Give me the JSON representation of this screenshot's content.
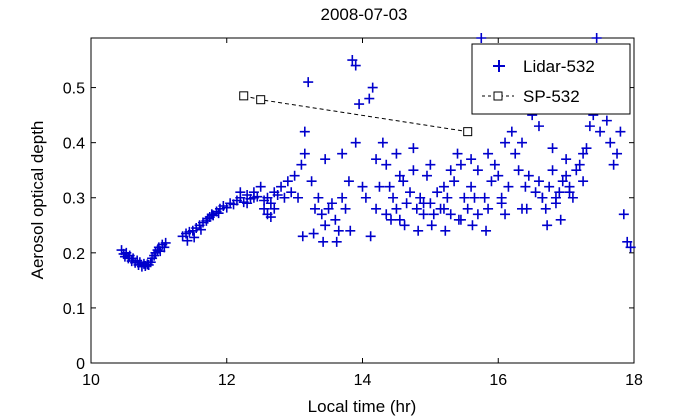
{
  "chart_data": {
    "type": "scatter",
    "title": "2008-07-03",
    "xlabel": "Local time (hr)",
    "ylabel": "Aerosol optical depth",
    "xlim": [
      10,
      18
    ],
    "ylim": [
      0,
      0.59
    ],
    "xticks": [
      "10",
      "12",
      "14",
      "16",
      "18"
    ],
    "xtick_values": [
      10,
      12,
      14,
      16,
      18
    ],
    "yticks": [
      "0",
      "0.1",
      "0.2",
      "0.3",
      "0.4",
      "0.5"
    ],
    "ytick_values": [
      0,
      0.1,
      0.2,
      0.3,
      0.4,
      0.5
    ],
    "legend_position": "top-right",
    "colors": {
      "lidar": "#0000cc",
      "sp": "#000000"
    },
    "series": [
      {
        "name": "Lidar-532",
        "marker": "plus",
        "points": [
          [
            10.45,
            0.205
          ],
          [
            10.48,
            0.198
          ],
          [
            10.5,
            0.193
          ],
          [
            10.52,
            0.2
          ],
          [
            10.55,
            0.19
          ],
          [
            10.57,
            0.195
          ],
          [
            10.6,
            0.185
          ],
          [
            10.62,
            0.19
          ],
          [
            10.65,
            0.182
          ],
          [
            10.68,
            0.186
          ],
          [
            10.7,
            0.178
          ],
          [
            10.72,
            0.183
          ],
          [
            10.75,
            0.175
          ],
          [
            10.78,
            0.18
          ],
          [
            10.8,
            0.176
          ],
          [
            10.83,
            0.179
          ],
          [
            10.85,
            0.178
          ],
          [
            10.88,
            0.183
          ],
          [
            10.9,
            0.19
          ],
          [
            10.93,
            0.195
          ],
          [
            10.95,
            0.2
          ],
          [
            10.98,
            0.205
          ],
          [
            11.0,
            0.21
          ],
          [
            11.02,
            0.203
          ],
          [
            11.05,
            0.215
          ],
          [
            11.08,
            0.21
          ],
          [
            11.1,
            0.218
          ],
          [
            11.35,
            0.23
          ],
          [
            11.4,
            0.235
          ],
          [
            11.42,
            0.222
          ],
          [
            11.45,
            0.238
          ],
          [
            11.5,
            0.24
          ],
          [
            11.52,
            0.228
          ],
          [
            11.55,
            0.245
          ],
          [
            11.6,
            0.25
          ],
          [
            11.62,
            0.242
          ],
          [
            11.65,
            0.255
          ],
          [
            11.7,
            0.258
          ],
          [
            11.72,
            0.262
          ],
          [
            11.75,
            0.265
          ],
          [
            11.78,
            0.27
          ],
          [
            11.8,
            0.268
          ],
          [
            11.85,
            0.275
          ],
          [
            11.88,
            0.272
          ],
          [
            11.9,
            0.28
          ],
          [
            11.95,
            0.285
          ],
          [
            12.0,
            0.282
          ],
          [
            12.05,
            0.29
          ],
          [
            12.1,
            0.288
          ],
          [
            12.15,
            0.295
          ],
          [
            12.2,
            0.3
          ],
          [
            12.25,
            0.292
          ],
          [
            12.3,
            0.305
          ],
          [
            12.35,
            0.298
          ],
          [
            12.4,
            0.31
          ],
          [
            12.45,
            0.302
          ],
          [
            12.5,
            0.32
          ],
          [
            12.55,
            0.295
          ],
          [
            12.6,
            0.3
          ],
          [
            12.65,
            0.29
          ],
          [
            12.7,
            0.31
          ],
          [
            12.75,
            0.305
          ],
          [
            12.8,
            0.32
          ],
          [
            12.85,
            0.3
          ],
          [
            12.9,
            0.33
          ],
          [
            12.95,
            0.31
          ],
          [
            12.55,
            0.28
          ],
          [
            12.6,
            0.27
          ],
          [
            12.65,
            0.265
          ],
          [
            12.7,
            0.28
          ],
          [
            12.4,
            0.3
          ],
          [
            12.2,
            0.31
          ],
          [
            12.3,
            0.29
          ],
          [
            13.0,
            0.34
          ],
          [
            13.05,
            0.3
          ],
          [
            13.1,
            0.36
          ],
          [
            13.15,
            0.38
          ],
          [
            13.2,
            0.51
          ],
          [
            13.25,
            0.33
          ],
          [
            13.3,
            0.28
          ],
          [
            13.35,
            0.3
          ],
          [
            13.4,
            0.27
          ],
          [
            13.45,
            0.25
          ],
          [
            13.5,
            0.28
          ],
          [
            13.55,
            0.29
          ],
          [
            13.6,
            0.26
          ],
          [
            13.65,
            0.24
          ],
          [
            13.7,
            0.3
          ],
          [
            13.75,
            0.28
          ],
          [
            13.8,
            0.33
          ],
          [
            13.85,
            0.55
          ],
          [
            13.9,
            0.54
          ],
          [
            13.95,
            0.47
          ],
          [
            14.0,
            0.32
          ],
          [
            14.05,
            0.3
          ],
          [
            14.1,
            0.48
          ],
          [
            14.15,
            0.5
          ],
          [
            14.2,
            0.28
          ],
          [
            14.25,
            0.32
          ],
          [
            14.3,
            0.4
          ],
          [
            14.35,
            0.36
          ],
          [
            14.4,
            0.32
          ],
          [
            14.45,
            0.3
          ],
          [
            14.5,
            0.28
          ],
          [
            14.55,
            0.34
          ],
          [
            14.6,
            0.33
          ],
          [
            14.65,
            0.29
          ],
          [
            14.7,
            0.31
          ],
          [
            14.75,
            0.35
          ],
          [
            14.8,
            0.28
          ],
          [
            14.85,
            0.3
          ],
          [
            14.9,
            0.27
          ],
          [
            14.95,
            0.34
          ],
          [
            15.0,
            0.29
          ],
          [
            15.05,
            0.27
          ],
          [
            15.1,
            0.31
          ],
          [
            15.15,
            0.28
          ],
          [
            15.2,
            0.32
          ],
          [
            15.25,
            0.3
          ],
          [
            15.3,
            0.27
          ],
          [
            15.35,
            0.33
          ],
          [
            15.4,
            0.38
          ],
          [
            15.45,
            0.36
          ],
          [
            15.5,
            0.3
          ],
          [
            15.55,
            0.28
          ],
          [
            15.6,
            0.32
          ],
          [
            15.65,
            0.3
          ],
          [
            15.7,
            0.35
          ],
          [
            15.75,
            0.59
          ],
          [
            15.8,
            0.3
          ],
          [
            15.85,
            0.28
          ],
          [
            15.9,
            0.33
          ],
          [
            15.95,
            0.36
          ],
          [
            16.0,
            0.34
          ],
          [
            16.05,
            0.3
          ],
          [
            16.1,
            0.27
          ],
          [
            16.15,
            0.32
          ],
          [
            16.2,
            0.42
          ],
          [
            16.25,
            0.38
          ],
          [
            16.3,
            0.35
          ],
          [
            16.35,
            0.4
          ],
          [
            16.4,
            0.32
          ],
          [
            16.45,
            0.34
          ],
          [
            16.5,
            0.45
          ],
          [
            16.55,
            0.31
          ],
          [
            16.6,
            0.33
          ],
          [
            16.65,
            0.3
          ],
          [
            16.7,
            0.28
          ],
          [
            16.75,
            0.32
          ],
          [
            16.8,
            0.35
          ],
          [
            16.85,
            0.3
          ],
          [
            16.9,
            0.31
          ],
          [
            16.95,
            0.33
          ],
          [
            17.0,
            0.34
          ],
          [
            17.05,
            0.32
          ],
          [
            17.1,
            0.3
          ],
          [
            17.15,
            0.35
          ],
          [
            17.2,
            0.36
          ],
          [
            17.25,
            0.38
          ],
          [
            17.3,
            0.39
          ],
          [
            17.35,
            0.43
          ],
          [
            17.4,
            0.45
          ],
          [
            17.45,
            0.59
          ],
          [
            17.5,
            0.42
          ],
          [
            17.55,
            0.47
          ],
          [
            17.6,
            0.44
          ],
          [
            17.65,
            0.4
          ],
          [
            17.7,
            0.36
          ],
          [
            17.75,
            0.38
          ],
          [
            17.8,
            0.42
          ],
          [
            17.85,
            0.27
          ],
          [
            17.9,
            0.22
          ],
          [
            17.95,
            0.21
          ],
          [
            13.12,
            0.23
          ],
          [
            13.28,
            0.235
          ],
          [
            13.42,
            0.22
          ],
          [
            13.62,
            0.22
          ],
          [
            13.82,
            0.24
          ],
          [
            14.12,
            0.23
          ],
          [
            14.42,
            0.26
          ],
          [
            14.62,
            0.25
          ],
          [
            14.82,
            0.24
          ],
          [
            15.02,
            0.25
          ],
          [
            15.22,
            0.24
          ],
          [
            15.42,
            0.26
          ],
          [
            15.62,
            0.25
          ],
          [
            15.82,
            0.24
          ],
          [
            16.42,
            0.28
          ],
          [
            16.72,
            0.25
          ],
          [
            16.92,
            0.26
          ],
          [
            13.15,
            0.42
          ],
          [
            13.45,
            0.37
          ],
          [
            13.7,
            0.38
          ],
          [
            13.9,
            0.4
          ],
          [
            14.2,
            0.37
          ],
          [
            14.5,
            0.38
          ],
          [
            14.75,
            0.39
          ],
          [
            15.0,
            0.36
          ],
          [
            15.3,
            0.35
          ],
          [
            15.6,
            0.37
          ],
          [
            15.85,
            0.38
          ],
          [
            16.1,
            0.4
          ],
          [
            16.6,
            0.43
          ],
          [
            16.8,
            0.39
          ],
          [
            17.0,
            0.37
          ],
          [
            14.35,
            0.27
          ],
          [
            14.55,
            0.26
          ],
          [
            14.9,
            0.29
          ],
          [
            15.2,
            0.28
          ],
          [
            15.45,
            0.26
          ],
          [
            15.7,
            0.27
          ],
          [
            16.05,
            0.29
          ],
          [
            16.35,
            0.28
          ],
          [
            16.65,
            0.3
          ],
          [
            16.85,
            0.29
          ],
          [
            17.05,
            0.31
          ],
          [
            17.25,
            0.33
          ]
        ]
      },
      {
        "name": "SP-532",
        "marker": "square",
        "line": "dashed",
        "points": [
          [
            12.25,
            0.485
          ],
          [
            12.5,
            0.478
          ],
          [
            15.55,
            0.42
          ]
        ]
      }
    ]
  }
}
